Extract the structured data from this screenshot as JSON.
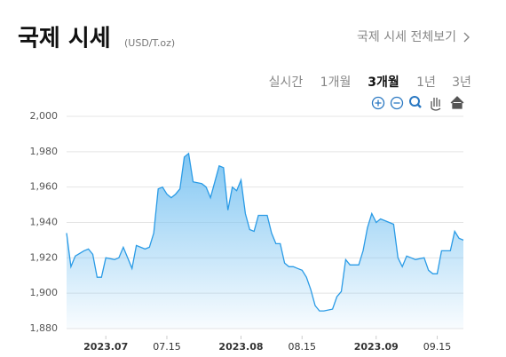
{
  "header": {
    "title": "국제 시세",
    "unit": "(USD/T.oz)",
    "link": "국제 시세 전체보기"
  },
  "tabs": {
    "items": [
      "실시간",
      "1개월",
      "3개월",
      "1년",
      "3년"
    ],
    "selected": 2
  },
  "chart_data": {
    "type": "area",
    "x": [
      "2023-06-22",
      "2023-06-23",
      "2023-06-24",
      "2023-06-26",
      "2023-06-27",
      "2023-06-28",
      "2023-06-29",
      "2023-06-30",
      "2023-07-01",
      "2023-07-03",
      "2023-07-04",
      "2023-07-05",
      "2023-07-06",
      "2023-07-07",
      "2023-07-08",
      "2023-07-10",
      "2023-07-11",
      "2023-07-12",
      "2023-07-13",
      "2023-07-14",
      "2023-07-15",
      "2023-07-16",
      "2023-07-17",
      "2023-07-18",
      "2023-07-19",
      "2023-07-20",
      "2023-07-21",
      "2023-07-23",
      "2023-07-24",
      "2023-07-25",
      "2023-07-26",
      "2023-07-27",
      "2023-07-28",
      "2023-07-29",
      "2023-07-30",
      "2023-07-31",
      "2023-08-01",
      "2023-08-02",
      "2023-08-03",
      "2023-08-04",
      "2023-08-05",
      "2023-08-07",
      "2023-08-08",
      "2023-08-09",
      "2023-08-10",
      "2023-08-11",
      "2023-08-12",
      "2023-08-13",
      "2023-08-14",
      "2023-08-15",
      "2023-08-16",
      "2023-08-17",
      "2023-08-18",
      "2023-08-19",
      "2023-08-20",
      "2023-08-22",
      "2023-08-23",
      "2023-08-24",
      "2023-08-25",
      "2023-08-26",
      "2023-08-27",
      "2023-08-28",
      "2023-08-29",
      "2023-08-30",
      "2023-08-31",
      "2023-09-01",
      "2023-09-02",
      "2023-09-04",
      "2023-09-05",
      "2023-09-06",
      "2023-09-07",
      "2023-09-08",
      "2023-09-09",
      "2023-09-10",
      "2023-09-12",
      "2023-09-13",
      "2023-09-14",
      "2023-09-15",
      "2023-09-16",
      "2023-09-18",
      "2023-09-19",
      "2023-09-20",
      "2023-09-21"
    ],
    "series": [
      {
        "color": "#2a9be6",
        "values": [
          1934,
          1915,
          1921,
          1924,
          1925,
          1922,
          1909,
          1909,
          1920,
          1919,
          1920,
          1926,
          1920,
          1914,
          1927,
          1925,
          1926,
          1934,
          1959,
          1960,
          1956,
          1954,
          1956,
          1959,
          1977,
          1979,
          1963,
          1962,
          1960,
          1954,
          1963,
          1972,
          1971,
          1947,
          1960,
          1958,
          1964,
          1945,
          1936,
          1935,
          1944,
          1944,
          1934,
          1928,
          1928,
          1917,
          1915,
          1915,
          1914,
          1913,
          1909,
          1902,
          1893,
          1890,
          1890,
          1891,
          1898,
          1901,
          1919,
          1916,
          1916,
          1916,
          1924,
          1937,
          1945,
          1940,
          1942,
          1940,
          1939,
          1920,
          1915,
          1921,
          1920,
          1919,
          1920,
          1913,
          1911,
          1911,
          1924,
          1924,
          1935,
          1931,
          1930
        ]
      }
    ],
    "xlim": [
      "2023-06-22",
      "2023-09-21"
    ],
    "xticks": [
      {
        "value": "2023-07-01",
        "label": "2023.07"
      },
      {
        "value": "2023-07-15",
        "label": "07.15"
      },
      {
        "value": "2023-08-01",
        "label": "2023.08"
      },
      {
        "value": "2023-08-15",
        "label": "08.15"
      },
      {
        "value": "2023-09-01",
        "label": "2023.09"
      },
      {
        "value": "2023-09-15",
        "label": "09.15"
      }
    ],
    "ylim": [
      1880,
      2000
    ],
    "yticks": [
      {
        "value": 1880,
        "label": "1,880"
      },
      {
        "value": 1900,
        "label": "1,900"
      },
      {
        "value": 1920,
        "label": "1,920"
      },
      {
        "value": 1940,
        "label": "1,940"
      },
      {
        "value": 1960,
        "label": "1,960"
      },
      {
        "value": 1980,
        "label": "1,980"
      },
      {
        "value": 2000,
        "label": "2,000"
      }
    ],
    "grid": true
  }
}
